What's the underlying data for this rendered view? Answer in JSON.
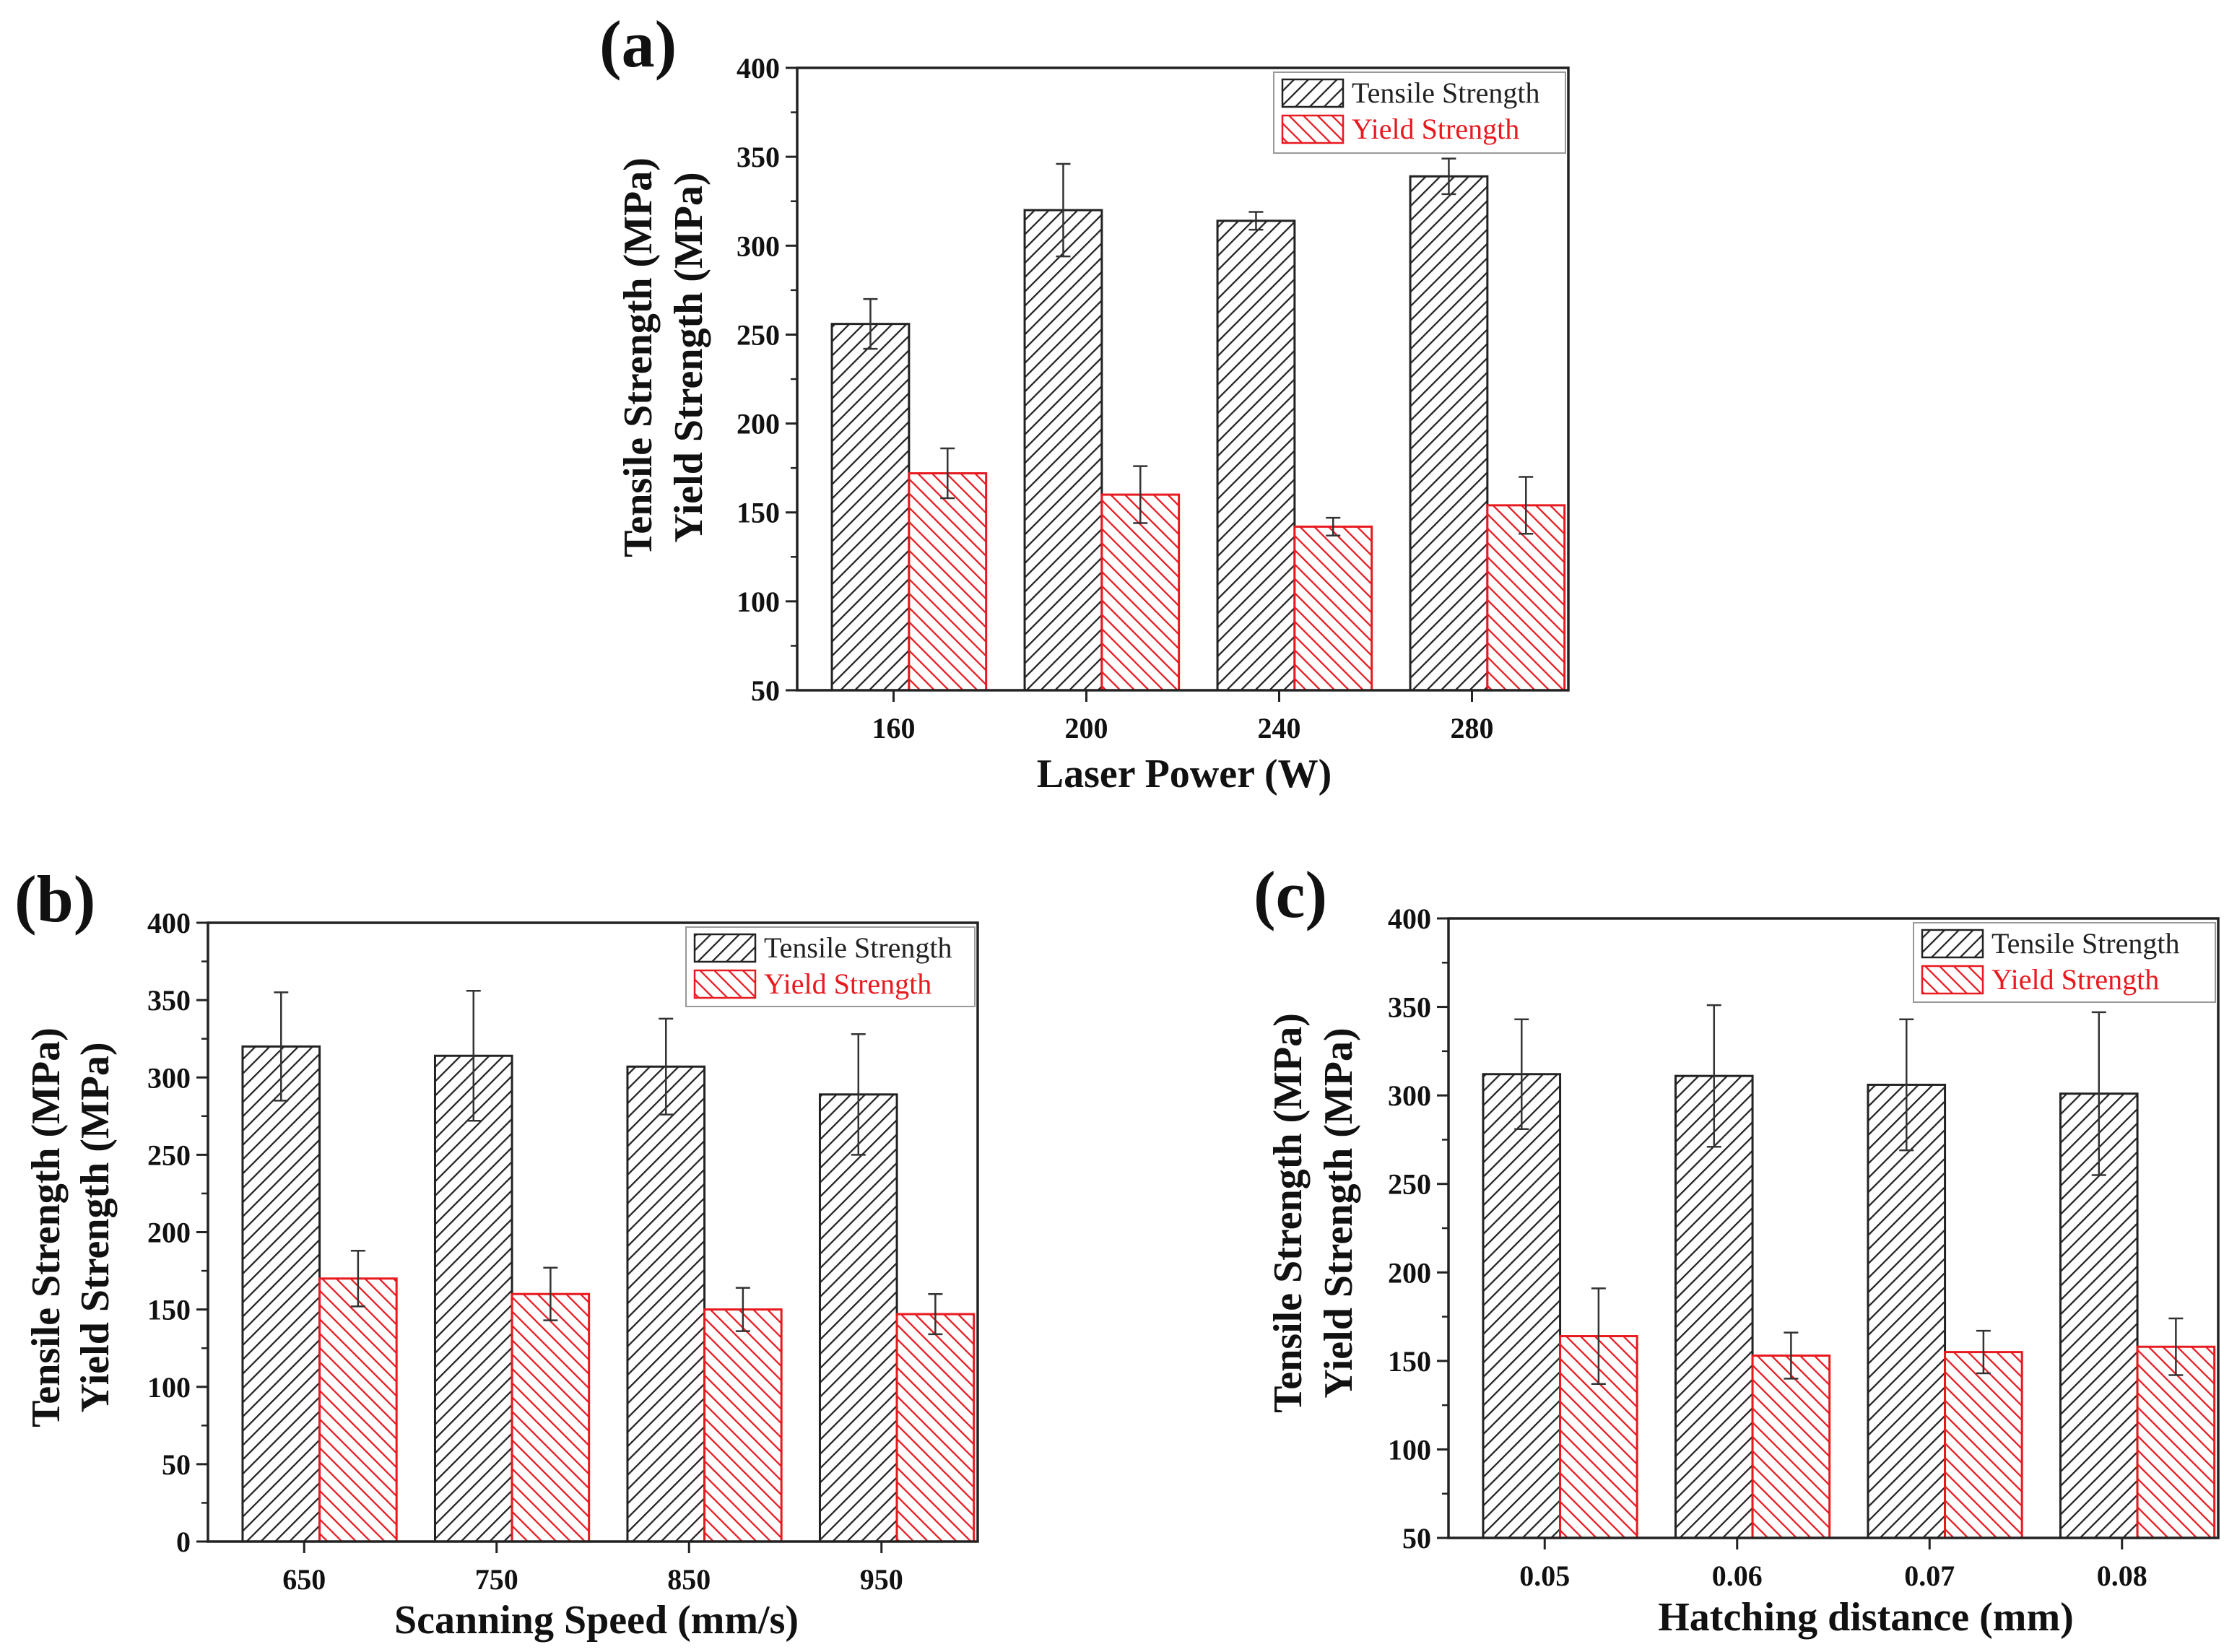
{
  "colors": {
    "tensile_hatch": "#222222",
    "yield_hatch": "#e8191f",
    "axis": "#222222",
    "legend_yield_text": "#e8191f",
    "legend_tensile_text": "#222222"
  },
  "chart_data": [
    {
      "type": "bar",
      "panel_label": "(a)",
      "xlabel": "Laser Power (W)",
      "ylabel_line1": "Tensile Strength (MPa)",
      "ylabel_line2": "Yield Strength (MPa)",
      "categories": [
        "160",
        "200",
        "240",
        "280"
      ],
      "ylim": [
        50,
        400
      ],
      "yticks": [
        "50",
        "100",
        "150",
        "200",
        "250",
        "300",
        "350",
        "400"
      ],
      "legend_position": "top-right",
      "series": [
        {
          "name": "Tensile Strength",
          "values": [
            256,
            320,
            314,
            339
          ],
          "errors": [
            14,
            26,
            5,
            10
          ]
        },
        {
          "name": "Yield Strength",
          "values": [
            172,
            160,
            142,
            154
          ],
          "errors": [
            14,
            16,
            5,
            16
          ]
        }
      ]
    },
    {
      "type": "bar",
      "panel_label": "(b)",
      "xlabel": "Scanning Speed (mm/s)",
      "ylabel_line1": "Tensile Strength (MPa)",
      "ylabel_line2": "Yield Strength (MPa)",
      "categories": [
        "650",
        "750",
        "850",
        "950"
      ],
      "ylim": [
        0,
        400
      ],
      "yticks": [
        "0",
        "50",
        "100",
        "150",
        "200",
        "250",
        "300",
        "350",
        "400"
      ],
      "legend_position": "top-right",
      "series": [
        {
          "name": "Tensile Strength",
          "values": [
            320,
            314,
            307,
            289
          ],
          "errors": [
            35,
            42,
            31,
            39
          ]
        },
        {
          "name": "Yield Strength",
          "values": [
            170,
            160,
            150,
            147
          ],
          "errors": [
            18,
            17,
            14,
            13
          ]
        }
      ]
    },
    {
      "type": "bar",
      "panel_label": "(c)",
      "xlabel": "Hatching distance (mm)",
      "ylabel_line1": "Tensile Strength (MPa)",
      "ylabel_line2": "Yield Strength (MPa)",
      "categories": [
        "0.05",
        "0.06",
        "0.07",
        "0.08"
      ],
      "ylim": [
        50,
        400
      ],
      "yticks": [
        "50",
        "100",
        "150",
        "200",
        "250",
        "300",
        "350",
        "400"
      ],
      "legend_position": "top-right",
      "series": [
        {
          "name": "Tensile Strength",
          "values": [
            312,
            311,
            306,
            301
          ],
          "errors": [
            31,
            40,
            37,
            46
          ]
        },
        {
          "name": "Yield Strength",
          "values": [
            164,
            153,
            155,
            158
          ],
          "errors": [
            27,
            13,
            12,
            16
          ]
        }
      ]
    }
  ]
}
